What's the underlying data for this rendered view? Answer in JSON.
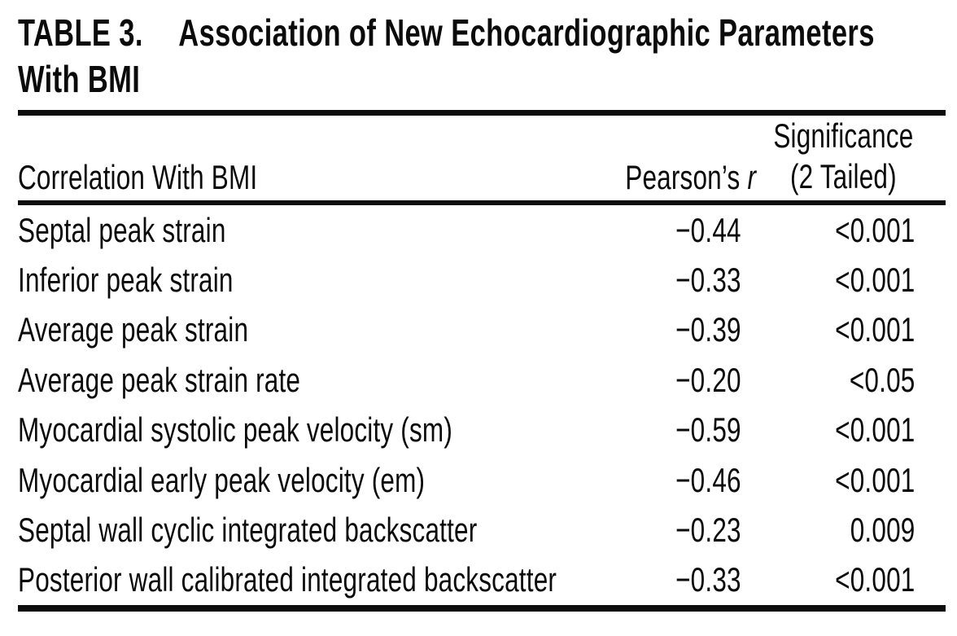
{
  "title": {
    "label": "TABLE 3.",
    "lines": [
      "Association of New Echocardiographic Parameters",
      "With BMI"
    ]
  },
  "table": {
    "col1_header": "Correlation With BMI",
    "col2_header": {
      "text": "Pearson’s",
      "symbol": "r"
    },
    "col3_header_lines": [
      "Significance",
      "(2 Tailed)"
    ],
    "rows": [
      {
        "label": "Septal peak strain",
        "r": "−0.44",
        "sig": "<0.001"
      },
      {
        "label": "Inferior peak strain",
        "r": "−0.33",
        "sig": "<0.001"
      },
      {
        "label": "Average peak strain",
        "r": "−0.39",
        "sig": "<0.001"
      },
      {
        "label": "Average peak strain rate",
        "r": "−0.20",
        "sig": "<0.05"
      },
      {
        "label": "Myocardial systolic peak velocity (sm)",
        "r": "−0.59",
        "sig": "<0.001"
      },
      {
        "label": "Myocardial early peak velocity (em)",
        "r": "−0.46",
        "sig": "<0.001"
      },
      {
        "label": "Septal wall cyclic integrated backscatter",
        "r": "−0.23",
        "sig": "0.009"
      },
      {
        "label": "Posterior wall calibrated integrated backscatter",
        "r": "−0.33",
        "sig": "<0.001"
      }
    ]
  },
  "colors": {
    "text": "#0b0b0b",
    "background": "#ffffff",
    "rule": "#0d0d0d"
  },
  "chart_data": {
    "type": "table",
    "title": "TABLE 3. Association of New Echocardiographic Parameters With BMI",
    "columns": [
      "Correlation With BMI",
      "Pearson's r",
      "Significance (2 Tailed)"
    ],
    "rows": [
      [
        "Septal peak strain",
        "−0.44",
        "<0.001"
      ],
      [
        "Inferior peak strain",
        "−0.33",
        "<0.001"
      ],
      [
        "Average peak strain",
        "−0.39",
        "<0.001"
      ],
      [
        "Average peak strain rate",
        "−0.20",
        "<0.05"
      ],
      [
        "Myocardial systolic peak velocity (sm)",
        "−0.59",
        "<0.001"
      ],
      [
        "Myocardial early peak velocity (em)",
        "−0.46",
        "<0.001"
      ],
      [
        "Septal wall cyclic integrated backscatter",
        "−0.23",
        "0.009"
      ],
      [
        "Posterior wall calibrated integrated backscatter",
        "−0.33",
        "<0.001"
      ]
    ]
  }
}
